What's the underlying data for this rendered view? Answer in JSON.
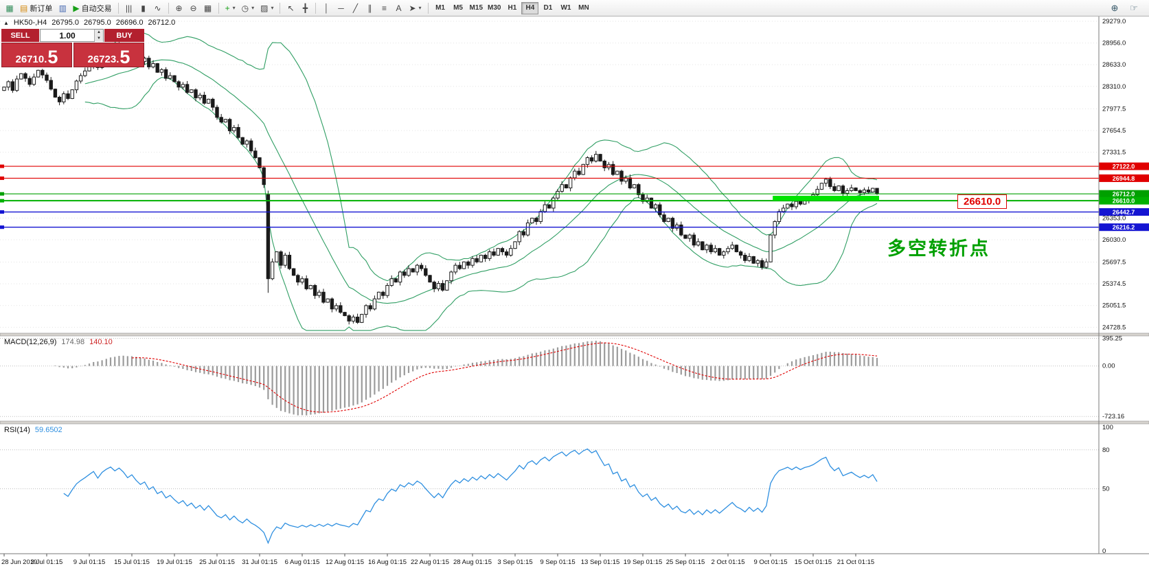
{
  "icons": {
    "collapse": "▲",
    "dropdown": "▾",
    "spinner_up": "▲",
    "spinner_down": "▼"
  },
  "toolbar": {
    "groups": [
      {
        "items": [
          {
            "name": "new-chart-button",
            "glyph": "▦",
            "glyph_color": "#2e8b57"
          },
          {
            "name": "new-order-button",
            "glyph": "▤",
            "glyph_color": "#d4880c",
            "label": "新订单"
          },
          {
            "name": "metaeditor-button",
            "glyph": "▥",
            "glyph_color": "#4668b0"
          },
          {
            "name": "autotrading-button",
            "glyph": "▶",
            "glyph_color": "#18a018",
            "label": "自动交易"
          }
        ]
      },
      {
        "items": [
          {
            "name": "bar-chart-button",
            "glyph": "|||"
          },
          {
            "name": "candlestick-chart-button",
            "glyph": "▮"
          },
          {
            "name": "line-chart-button",
            "glyph": "∿"
          }
        ]
      },
      {
        "items": [
          {
            "name": "zoom-in-button",
            "glyph": "⊕"
          },
          {
            "name": "zoom-out-button",
            "glyph": "⊖"
          },
          {
            "name": "tile-windows-button",
            "glyph": "▦"
          }
        ]
      },
      {
        "items": [
          {
            "name": "indicators-button",
            "glyph": "+",
            "glyph_color": "#18a018",
            "dropdown": true
          },
          {
            "name": "periods-button",
            "glyph": "◷",
            "dropdown": true
          },
          {
            "name": "templates-button",
            "glyph": "▨",
            "dropdown": true
          }
        ]
      },
      {
        "items": [
          {
            "name": "cursor-button",
            "glyph": "↖"
          },
          {
            "name": "crosshair-button",
            "glyph": "╋"
          }
        ]
      },
      {
        "items": [
          {
            "name": "vertical-line-button",
            "glyph": "│"
          },
          {
            "name": "horizontal-line-button",
            "glyph": "─"
          },
          {
            "name": "trendline-button",
            "glyph": "╱"
          },
          {
            "name": "channel-button",
            "glyph": "∥"
          },
          {
            "name": "fibonacci-button",
            "glyph": "≡"
          },
          {
            "name": "text-button",
            "glyph": "A"
          },
          {
            "name": "arrows-button",
            "glyph": "➤",
            "dropdown": true
          }
        ]
      }
    ],
    "timeframes": {
      "items": [
        "M1",
        "M5",
        "M15",
        "M30",
        "H1",
        "H4",
        "D1",
        "W1",
        "MN"
      ],
      "active": "H4"
    },
    "right_icons": [
      {
        "name": "magnifier-icon",
        "glyph": "⊕"
      },
      {
        "name": "pointer-icon",
        "glyph": "☞"
      }
    ]
  },
  "chart": {
    "title": {
      "symbol_period": "HK50-,H4",
      "open": "26795.0",
      "high": "26795.0",
      "low": "26696.0",
      "close": "26712.0"
    },
    "trade_panel": {
      "sell_label": "SELL",
      "buy_label": "BUY",
      "volume": "1.00",
      "sell_price_main": "26710.",
      "sell_price_big": "5",
      "buy_price_main": "26723.",
      "buy_price_big": "5"
    },
    "annotation_label": "26610.0",
    "annotation_text": "多空转折点"
  },
  "chart_data": {
    "type": "candlestick",
    "symbol": "HK50-",
    "period": "H4",
    "price_range": [
      24640,
      29350
    ],
    "first_open": 28250,
    "x_label_step": 10,
    "x_labels": [
      "28 Jun 2019",
      "3 Jul 01:15",
      "9 Jul 01:15",
      "15 Jul 01:15",
      "19 Jul 01:15",
      "25 Jul 01:15",
      "31 Jul 01:15",
      "6 Aug 01:15",
      "12 Aug 01:15",
      "16 Aug 01:15",
      "22 Aug 01:15",
      "28 Aug 01:15",
      "3 Sep 01:15",
      "9 Sep 01:15",
      "13 Sep 01:15",
      "19 Sep 01:15",
      "25 Sep 01:15",
      "2 Oct 01:15",
      "9 Oct 01:15",
      "15 Oct 01:15",
      "21 Oct 01:15"
    ],
    "closes": [
      28300,
      28380,
      28250,
      28420,
      28500,
      28430,
      28340,
      28450,
      28550,
      28480,
      28400,
      28270,
      28150,
      28080,
      28200,
      28130,
      28260,
      28390,
      28470,
      28540,
      28620,
      28700,
      28590,
      28740,
      28830,
      28900,
      28840,
      28920,
      28860,
      28770,
      28840,
      28750,
      28680,
      28730,
      28600,
      28650,
      28520,
      28560,
      28430,
      28470,
      28380,
      28300,
      28340,
      28220,
      28260,
      28140,
      28180,
      28060,
      28120,
      28000,
      27850,
      27780,
      27820,
      27650,
      27700,
      27550,
      27450,
      27500,
      27350,
      27250,
      27100,
      26850,
      25450,
      25700,
      25850,
      25650,
      25800,
      25600,
      25500,
      25400,
      25450,
      25300,
      25350,
      25200,
      25250,
      25100,
      25150,
      25000,
      25050,
      24950,
      24900,
      24820,
      24880,
      24800,
      24920,
      25050,
      25000,
      25150,
      25250,
      25200,
      25350,
      25450,
      25400,
      25550,
      25500,
      25600,
      25550,
      25650,
      25600,
      25500,
      25400,
      25300,
      25380,
      25280,
      25420,
      25550,
      25650,
      25600,
      25700,
      25650,
      25750,
      25700,
      25800,
      25750,
      25850,
      25800,
      25900,
      25850,
      25800,
      25900,
      26000,
      26150,
      26100,
      26280,
      26350,
      26300,
      26450,
      26550,
      26500,
      26650,
      26750,
      26850,
      26800,
      26950,
      27050,
      27000,
      27150,
      27250,
      27200,
      27300,
      27200,
      27100,
      27150,
      27000,
      27050,
      26900,
      26950,
      26800,
      26850,
      26700,
      26600,
      26650,
      26500,
      26550,
      26400,
      26300,
      26350,
      26200,
      26250,
      26100,
      26050,
      26100,
      25950,
      26000,
      25880,
      25950,
      25850,
      25900,
      25800,
      25850,
      25900,
      25950,
      25850,
      25800,
      25720,
      25780,
      25680,
      25720,
      25620,
      25700,
      26100,
      26300,
      26450,
      26500,
      26560,
      26520,
      26600,
      26560,
      26620,
      26650,
      26700,
      26780,
      26870,
      26930,
      26820,
      26760,
      26830,
      26720,
      26760,
      26800,
      26760,
      26730,
      26770,
      26740,
      26795,
      26712
    ],
    "candle_overrides": {
      "62": [
        26700,
        26760,
        25240,
        25450
      ],
      "205": [
        26795,
        26795,
        26696,
        26712
      ]
    },
    "price_axis_ticks": [
      {
        "v": 29279.0,
        "label": "29279.0"
      },
      {
        "v": 28956.0,
        "label": "28956.0"
      },
      {
        "v": 28633.0,
        "label": "28633.0"
      },
      {
        "v": 28310.0,
        "label": "28310.0"
      },
      {
        "v": 27977.5,
        "label": "27977.5"
      },
      {
        "v": 27654.5,
        "label": "27654.5"
      },
      {
        "v": 27331.5,
        "label": "27331.5"
      },
      {
        "v": 26353.0,
        "label": "26353.0"
      },
      {
        "v": 26030.0,
        "label": "26030.0"
      },
      {
        "v": 25697.5,
        "label": "25697.5"
      },
      {
        "v": 25374.5,
        "label": "25374.5"
      },
      {
        "v": 25051.5,
        "label": "25051.5"
      },
      {
        "v": 24728.5,
        "label": "24728.5"
      }
    ],
    "hlines": [
      {
        "price": 27122.0,
        "label": "27122.0",
        "color": "#e00000",
        "width": 1.2
      },
      {
        "price": 26944.8,
        "label": "26944.8",
        "color": "#e00000",
        "width": 1.2
      },
      {
        "price": 26712.0,
        "label": "26712.0",
        "color": "#00a000",
        "width": 1.2
      },
      {
        "price": 26610.0,
        "label": "26610.0",
        "color": "#00b000",
        "width": 2
      },
      {
        "price": 26442.7,
        "label": "26442.7",
        "color": "#1414d2",
        "width": 1.4
      },
      {
        "price": 26216.2,
        "label": "26216.2",
        "color": "#1414d2",
        "width": 1.4
      }
    ],
    "highlight_rect": {
      "from_index": 181,
      "to_index": 205,
      "price_top": 26684,
      "price_bottom": 26612,
      "color": "#00e400"
    },
    "bollinger": {
      "period": 20,
      "deviation": 2,
      "color": "#2f9e63"
    },
    "colors": {
      "up_candle": "#ffffff",
      "down_candle": "#1a1a1a",
      "outline": "#1a1a1a",
      "grid": "#e3e3e3",
      "axis_text": "#111111"
    },
    "indicators": [
      {
        "type": "macd",
        "label": "MACD(12,26,9)",
        "value_main": "174.98",
        "value_signal": "140.10",
        "params": [
          12,
          26,
          9
        ],
        "range": [
          -790,
          430
        ],
        "axis_ticks": [
          {
            "v": 395.25,
            "label": "395.25"
          },
          {
            "v": 0,
            "label": "0.00"
          },
          {
            "v": -723.16,
            "label": "-723.16"
          }
        ],
        "histogram_color": "#9b9b9b",
        "signal_color": "#e00000"
      },
      {
        "type": "rsi",
        "label": "RSI(14)",
        "value": "59.6502",
        "period": 14,
        "range": [
          0,
          100
        ],
        "levels": [
          80,
          50
        ],
        "axis_ticks": [
          {
            "v": 100,
            "label": "100"
          },
          {
            "v": 80,
            "label": "80"
          },
          {
            "v": 50,
            "label": "50"
          },
          {
            "v": 0,
            "label": "0"
          }
        ],
        "color": "#2e8fe0"
      }
    ]
  }
}
